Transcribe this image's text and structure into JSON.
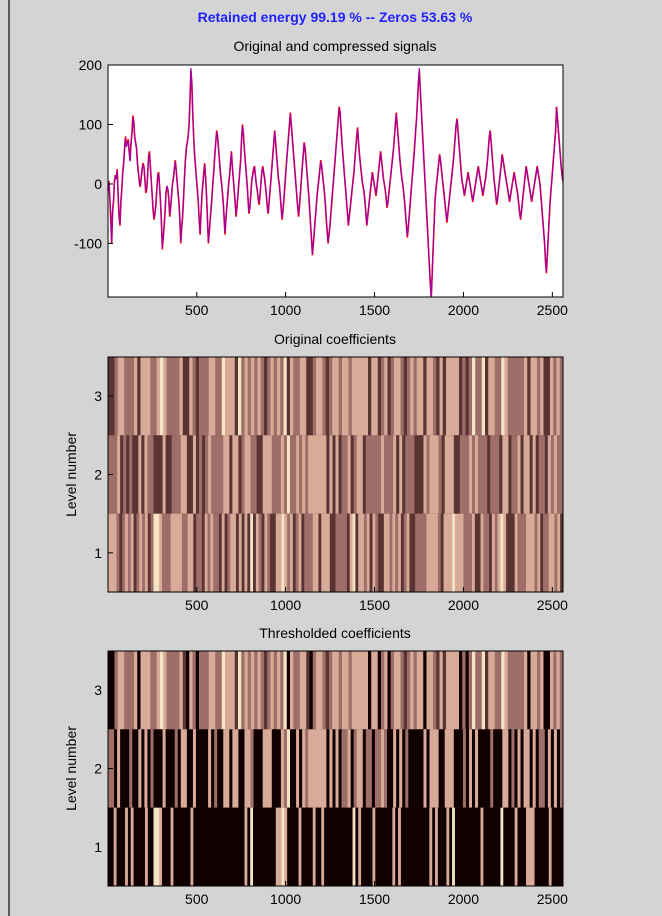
{
  "header": {
    "headline": "Retained energy 99.19 % -- Zeros 53.63 %",
    "headline_color": "#1f1fff"
  },
  "chart_data": [
    {
      "type": "line",
      "title": "Original and compressed signals",
      "xlim": [
        1,
        2560
      ],
      "ylim": [
        -190,
        200
      ],
      "xticks": [
        500,
        1000,
        1500,
        2000,
        2500
      ],
      "yticks": [
        200,
        100,
        0,
        -100
      ],
      "series": [
        {
          "color": "#ff0000",
          "values": [
            -10,
            5,
            -25,
            -60,
            -100,
            -45,
            -30,
            5,
            15,
            10,
            25,
            -20,
            -55,
            -70,
            -30,
            -10,
            20,
            35,
            60,
            80,
            65,
            70,
            75,
            55,
            40,
            70,
            85,
            115,
            105,
            80,
            70,
            60,
            35,
            20,
            5,
            -5,
            10,
            25,
            35,
            30,
            10,
            -15,
            -10,
            15,
            45,
            55,
            30,
            5,
            -20,
            -45,
            -60,
            -50,
            -35,
            -10,
            15,
            20,
            -5,
            -30,
            -65,
            -110,
            -90,
            -70,
            -45,
            -15,
            -5,
            -10,
            -25,
            -55,
            -40,
            -20,
            0,
            10,
            25,
            40,
            25,
            5,
            -15,
            -30,
            -60,
            -100,
            -75,
            -55,
            -25,
            10,
            40,
            60,
            70,
            80,
            100,
            140,
            190,
            170,
            120,
            80,
            50,
            30,
            10,
            -10,
            -30,
            -60,
            -85,
            -50,
            -20,
            0,
            20,
            35,
            10,
            -20,
            -60,
            -100,
            -80,
            -60,
            -40,
            -20,
            5,
            25,
            50,
            70,
            90,
            80,
            60,
            40,
            20,
            5,
            -10,
            -30,
            -55,
            -85,
            -60,
            -40,
            -20,
            0,
            15,
            35,
            55,
            30,
            10,
            -10,
            -30,
            -55,
            -40,
            -20,
            0,
            20,
            40,
            75,
            100,
            85,
            60,
            40,
            20,
            0,
            -25,
            -50,
            -40,
            -20,
            5,
            15,
            25,
            30,
            15,
            0,
            -10,
            -25,
            -35,
            -20,
            0,
            20,
            30,
            20,
            10,
            -5,
            -20,
            -40,
            -50,
            -30,
            -10,
            10,
            30,
            50,
            70,
            90,
            70,
            50,
            30,
            10,
            0,
            -20,
            -40,
            -60,
            -45,
            -25,
            -5,
            20,
            40,
            60,
            80,
            100,
            120,
            100,
            80,
            60,
            40,
            20,
            0,
            -20,
            -40,
            -55,
            -35,
            -15,
            10,
            30,
            50,
            70,
            60,
            40,
            20,
            0,
            -20,
            -45,
            -70,
            -95,
            -120,
            -100,
            -80,
            -60,
            -40,
            -20,
            -5,
            10,
            25,
            40,
            30,
            15,
            0,
            -15,
            -35,
            -60,
            -80,
            -100,
            -85,
            -70,
            -50,
            -30,
            -10,
            10,
            30,
            50,
            70,
            90,
            110,
            130,
            120,
            95,
            70,
            50,
            30,
            10,
            -10,
            -30,
            -50,
            -70,
            -55,
            -40,
            -25,
            -10,
            5,
            20,
            40,
            60,
            80,
            95,
            70,
            50,
            35,
            20,
            5,
            -5,
            -15,
            -30,
            -50,
            -70,
            -55,
            -40,
            -25,
            -10,
            5,
            20,
            10,
            0,
            -10,
            -20,
            -5,
            10,
            25,
            40,
            55,
            40,
            25,
            10,
            0,
            -10,
            -25,
            -40,
            -30,
            -15,
            0,
            15,
            30,
            45,
            60,
            80,
            100,
            120,
            100,
            80,
            60,
            40,
            25,
            10,
            0,
            -15,
            -30,
            -50,
            -70,
            -90,
            -75,
            -55,
            -35,
            -15,
            5,
            25,
            45,
            65,
            90,
            110,
            140,
            170,
            190,
            160,
            130,
            100,
            70,
            40,
            10,
            -20,
            -50,
            -80,
            -110,
            -140,
            -170,
            -190,
            -150,
            -110,
            -70,
            -30,
            -10,
            5,
            20,
            35,
            50,
            40,
            25,
            10,
            -5,
            -20,
            -35,
            -50,
            -65,
            -50,
            -35,
            -20,
            -5,
            10,
            25,
            40,
            60,
            80,
            100,
            110,
            90,
            70,
            50,
            30,
            10,
            0,
            -10,
            -20,
            -10,
            0,
            10,
            20,
            10,
            0,
            -10,
            -20,
            -30,
            -20,
            -10,
            0,
            10,
            20,
            30,
            20,
            10,
            0,
            -10,
            -20,
            -10,
            0,
            10,
            25,
            40,
            60,
            80,
            90,
            70,
            50,
            30,
            10,
            -5,
            -20,
            -35,
            -25,
            -10,
            5,
            20,
            35,
            50,
            40,
            30,
            20,
            10,
            0,
            -10,
            -20,
            -30,
            -20,
            -10,
            0,
            10,
            20,
            10,
            0,
            -10,
            -20,
            -35,
            -50,
            -60,
            -45,
            -30,
            -15,
            0,
            15,
            30,
            20,
            10,
            0,
            -10,
            -20,
            -30,
            -20,
            -10,
            0,
            10,
            20,
            30,
            20,
            10,
            0,
            -20,
            -40,
            -60,
            -80,
            -100,
            -130,
            -150,
            -120,
            -90,
            -60,
            -30,
            -10,
            10,
            30,
            50,
            70,
            90,
            130,
            110,
            90,
            70,
            50,
            30,
            15,
            5
          ]
        },
        {
          "color": "#a000a0",
          "values": [
            -12,
            3,
            -22,
            -58,
            -98,
            -42,
            -28,
            3,
            12,
            8,
            22,
            -18,
            -52,
            -68,
            -28,
            -8,
            18,
            32,
            58,
            78,
            62,
            68,
            72,
            52,
            38,
            68,
            82,
            112,
            102,
            78,
            68,
            58,
            32,
            18,
            3,
            -3,
            8,
            22,
            32,
            28,
            8,
            -12,
            -8,
            12,
            42,
            52,
            28,
            3,
            -18,
            -42,
            -58,
            -48,
            -32,
            -8,
            12,
            18,
            -3,
            -28,
            -62,
            -108,
            -88,
            -68,
            -42,
            -12,
            -3,
            -8,
            -22,
            -52,
            -38,
            -18,
            0,
            8,
            22,
            38,
            22,
            3,
            -12,
            -28,
            -58,
            -98,
            -72,
            -52,
            -22,
            8,
            38,
            58,
            68,
            78,
            98,
            138,
            195,
            168,
            118,
            78,
            48,
            28,
            8,
            -8,
            -28,
            -58,
            -82,
            -48,
            -18,
            0,
            18,
            32,
            8,
            -18,
            -58,
            -98,
            -78,
            -58,
            -38,
            -18,
            3,
            22,
            48,
            68,
            88,
            78,
            58,
            38,
            18,
            3,
            -8,
            -28,
            -52,
            -82,
            -58,
            -38,
            -18,
            0,
            12,
            32,
            52,
            28,
            8,
            -8,
            -28,
            -52,
            -38,
            -18,
            0,
            18,
            38,
            72,
            98,
            82,
            58,
            38,
            18,
            0,
            -22,
            -48,
            -38,
            -18,
            3,
            12,
            22,
            28,
            12,
            0,
            -8,
            -22,
            -32,
            -18,
            0,
            18,
            28,
            18,
            8,
            -3,
            -18,
            -38,
            -48,
            -28,
            -8,
            8,
            28,
            48,
            68,
            88,
            68,
            48,
            28,
            8,
            0,
            -18,
            -38,
            -58,
            -42,
            -22,
            -3,
            18,
            38,
            58,
            78,
            98,
            118,
            98,
            78,
            58,
            38,
            18,
            0,
            -18,
            -38,
            -52,
            -32,
            -12,
            8,
            28,
            48,
            68,
            58,
            38,
            18,
            0,
            -18,
            -42,
            -68,
            -92,
            -118,
            -98,
            -78,
            -58,
            -38,
            -18,
            -3,
            8,
            22,
            38,
            28,
            12,
            0,
            -12,
            -32,
            -58,
            -78,
            -98,
            -82,
            -68,
            -48,
            -28,
            -8,
            8,
            28,
            48,
            68,
            88,
            108,
            128,
            118,
            92,
            68,
            48,
            28,
            8,
            -8,
            -28,
            -48,
            -68,
            -52,
            -38,
            -22,
            -8,
            3,
            18,
            38,
            58,
            78,
            92,
            68,
            48,
            32,
            18,
            3,
            -3,
            -12,
            -28,
            -48,
            -68,
            -52,
            -38,
            -22,
            -8,
            3,
            18,
            8,
            0,
            -8,
            -18,
            -3,
            8,
            22,
            38,
            52,
            38,
            22,
            8,
            0,
            -8,
            -22,
            -38,
            -28,
            -12,
            0,
            12,
            28,
            42,
            58,
            78,
            98,
            118,
            98,
            78,
            58,
            38,
            22,
            8,
            0,
            -12,
            -28,
            -48,
            -68,
            -88,
            -72,
            -52,
            -32,
            -12,
            3,
            22,
            42,
            62,
            88,
            108,
            138,
            168,
            195,
            158,
            128,
            98,
            68,
            38,
            8,
            -18,
            -48,
            -78,
            -108,
            -138,
            -168,
            -190,
            -148,
            -108,
            -68,
            -28,
            -8,
            3,
            18,
            32,
            48,
            38,
            22,
            8,
            -3,
            -18,
            -32,
            -48,
            -62,
            -48,
            -32,
            -18,
            -3,
            8,
            22,
            38,
            58,
            78,
            98,
            108,
            88,
            68,
            48,
            28,
            8,
            0,
            -8,
            -18,
            -8,
            0,
            8,
            18,
            8,
            0,
            -8,
            -18,
            -28,
            -18,
            -8,
            0,
            8,
            18,
            28,
            18,
            8,
            0,
            -8,
            -18,
            -8,
            0,
            8,
            22,
            38,
            58,
            78,
            88,
            68,
            48,
            28,
            8,
            -3,
            -18,
            -32,
            -22,
            -8,
            3,
            18,
            32,
            48,
            38,
            28,
            18,
            8,
            0,
            -8,
            -18,
            -28,
            -18,
            -8,
            0,
            8,
            18,
            8,
            0,
            -8,
            -18,
            -32,
            -48,
            -58,
            -42,
            -28,
            -12,
            0,
            12,
            28,
            18,
            8,
            0,
            -8,
            -18,
            -28,
            -18,
            -8,
            0,
            8,
            18,
            28,
            18,
            8,
            0,
            -18,
            -38,
            -58,
            -78,
            -98,
            -128,
            -148,
            -118,
            -88,
            -58,
            -28,
            -8,
            8,
            28,
            48,
            68,
            88,
            128,
            108,
            88,
            68,
            48,
            28,
            12,
            3
          ]
        }
      ]
    },
    {
      "type": "heatmap",
      "title": "Original coefficients",
      "xlim": [
        1,
        2560
      ],
      "ylabel": "Level number",
      "levels": [
        3,
        2,
        1
      ],
      "xticks": [
        500,
        1000,
        1500,
        2000,
        2500
      ],
      "yticks": [
        3,
        2,
        1
      ],
      "colormap": [
        "#100000",
        "#5a3432",
        "#9e6e68",
        "#d8aa98",
        "#f4e4c4"
      ]
    },
    {
      "type": "heatmap",
      "title": "Thresholded coefficients",
      "xlim": [
        1,
        2560
      ],
      "ylabel": "Level number",
      "levels": [
        3,
        2,
        1
      ],
      "xticks": [
        500,
        1000,
        1500,
        2000,
        2500
      ],
      "yticks": [
        3,
        2,
        1
      ],
      "colormap": [
        "#100000",
        "#5a3432",
        "#9e6e68",
        "#d8aa98",
        "#f4e4c4"
      ]
    }
  ]
}
